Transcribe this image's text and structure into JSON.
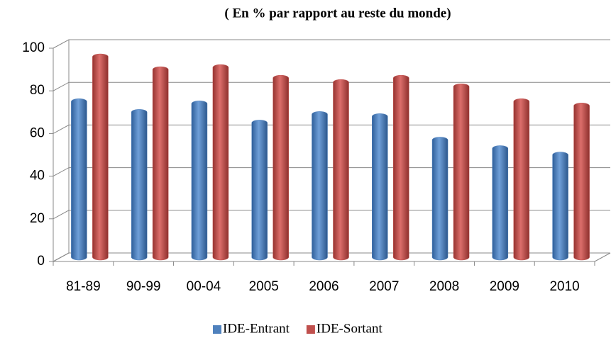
{
  "chart_data": {
    "type": "bar",
    "title": "( En % par rapport au reste du monde)",
    "categories": [
      "81-89",
      "90-99",
      "00-04",
      "2005",
      "2006",
      "2007",
      "2008",
      "2009",
      "2010"
    ],
    "series": [
      {
        "name": "IDE-Entrant",
        "color": "#4f81bd",
        "values": [
          73,
          68,
          72,
          63,
          67,
          66,
          55,
          51,
          48
        ]
      },
      {
        "name": "IDE-Sortant",
        "color": "#c0504d",
        "values": [
          94,
          88,
          89,
          84,
          82,
          84,
          80,
          73,
          71
        ]
      }
    ],
    "ylim": [
      0,
      100
    ],
    "yticks": [
      0,
      20,
      40,
      60,
      80,
      100
    ],
    "grid": true,
    "legend": "bottom"
  }
}
